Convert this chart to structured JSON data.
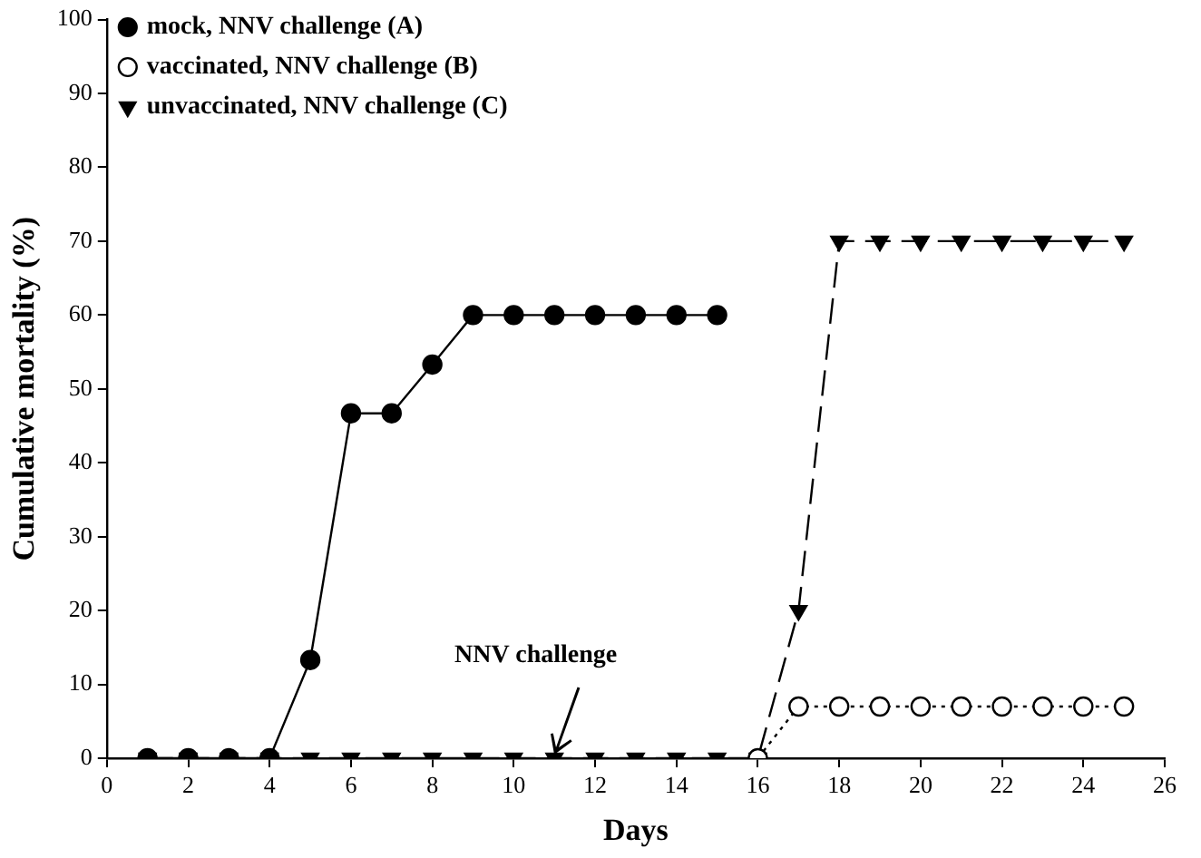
{
  "chart_data": {
    "type": "line",
    "xlabel": "Days",
    "ylabel": "Cumulative mortality (%)",
    "xlim": [
      0,
      26
    ],
    "xticks": [
      0,
      2,
      4,
      6,
      8,
      10,
      12,
      14,
      16,
      18,
      20,
      22,
      24,
      26
    ],
    "ylim": [
      0,
      100
    ],
    "yticks": [
      0,
      10,
      20,
      30,
      40,
      50,
      60,
      70,
      80,
      90,
      100
    ],
    "grid": false,
    "legend": "top left",
    "series": [
      {
        "name": "mock, NNV challenge (A)",
        "color": "#000000",
        "marker": "circle",
        "line_style": "solid",
        "x": [
          1,
          2,
          3,
          4,
          5,
          6,
          7,
          8,
          9,
          10,
          11,
          12,
          13,
          14,
          15
        ],
        "values": [
          0,
          0,
          0,
          0,
          13.3,
          46.7,
          46.7,
          53.3,
          60,
          60,
          60,
          60,
          60,
          60,
          60
        ]
      },
      {
        "name": "vaccinated, NNV challenge (B)",
        "color": "#000000",
        "marker": "open-circle",
        "line_style": "dotted",
        "x": [
          16,
          17,
          18,
          19,
          20,
          21,
          22,
          23,
          24,
          25
        ],
        "values": [
          0,
          7,
          7,
          7,
          7,
          7,
          7,
          7,
          7,
          7
        ]
      },
      {
        "name": "unvaccinated, NNV challenge (C)",
        "color": "#000000",
        "marker": "triangle-down",
        "line_style": "dashed",
        "x": [
          1,
          2,
          3,
          4,
          5,
          6,
          7,
          8,
          9,
          10,
          11,
          12,
          13,
          14,
          15,
          16,
          17,
          18,
          19,
          20,
          21,
          22,
          23,
          24,
          25
        ],
        "values": [
          0,
          0,
          0,
          0,
          0,
          0,
          0,
          0,
          0,
          0,
          0,
          0,
          0,
          0,
          0,
          0,
          20,
          70,
          70,
          70,
          70,
          70,
          70,
          70,
          70
        ]
      }
    ],
    "annotations": [
      "NNV challenge"
    ]
  }
}
